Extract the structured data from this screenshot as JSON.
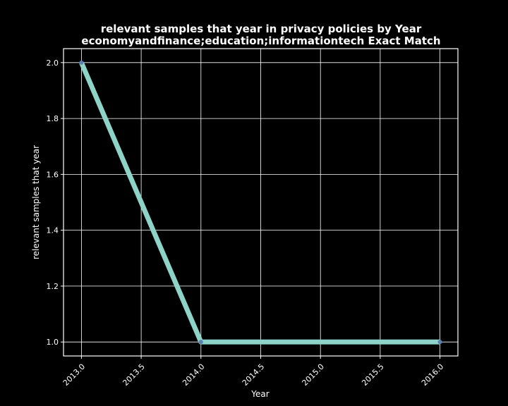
{
  "chart_data": {
    "type": "line",
    "title_line1": "relevant samples that year in privacy policies by Year",
    "title_line2": "economyandfinance;education;informationtech Exact Match",
    "xlabel": "Year",
    "ylabel": "relevant samples that year",
    "x": [
      2013,
      2014,
      2016
    ],
    "series": [
      {
        "values": [
          2.0,
          1.0,
          1.0
        ]
      }
    ],
    "xlim": [
      2012.85,
      2016.15
    ],
    "ylim": [
      0.95,
      2.05
    ],
    "xticks": [
      2013.0,
      2013.5,
      2014.0,
      2014.5,
      2015.0,
      2015.5,
      2016.0
    ],
    "xtick_labels": [
      "2013.0",
      "2013.5",
      "2014.0",
      "2014.5",
      "2015.0",
      "2015.5",
      "2016.0"
    ],
    "yticks": [
      1.0,
      1.2,
      1.4,
      1.6,
      1.8,
      2.0
    ],
    "ytick_labels": [
      "1.0",
      "1.2",
      "1.4",
      "1.6",
      "1.8",
      "2.0"
    ],
    "grid": true,
    "line_color": "#8dd3c7",
    "marker_color": "#5b7fb0",
    "background": "#000000",
    "axis_color": "#ffffff"
  }
}
